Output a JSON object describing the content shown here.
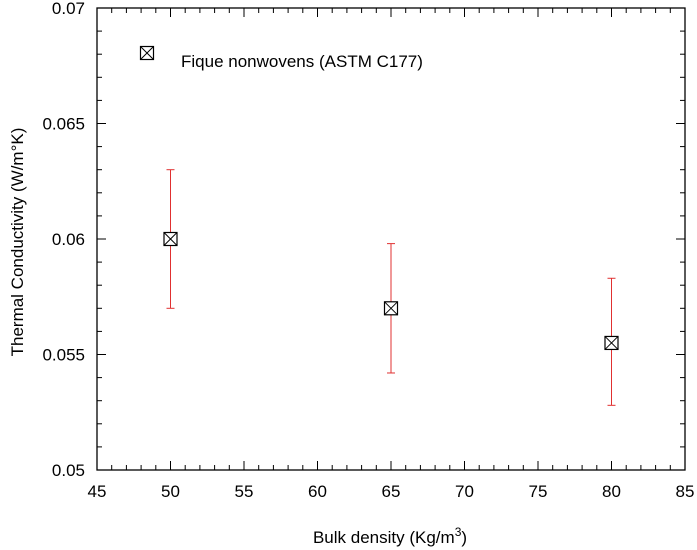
{
  "chart_data": {
    "type": "scatter",
    "title": "",
    "xlabel": "Bulk density (Kg/m",
    "xlabel_superscript": "3",
    "xlabel_suffix": ")",
    "ylabel": "Thermal Conductivity (W/m°K)",
    "xlim": [
      45,
      85
    ],
    "ylim": [
      0.05,
      0.07
    ],
    "x_ticks": [
      "45",
      "50",
      "55",
      "60",
      "65",
      "70",
      "75",
      "80",
      "85"
    ],
    "y_ticks": [
      "0.05",
      "0.055",
      "0.06",
      "0.065",
      "0.07"
    ],
    "grid": false,
    "legend_position": "top-left",
    "series": [
      {
        "name": "Fique nonwovens (ASTM C177)",
        "marker": "square-x",
        "marker_color": "#000000",
        "errorbar_color": "#e03030",
        "points": [
          {
            "x": 50,
            "y": 0.06,
            "y_low": 0.057,
            "y_high": 0.063
          },
          {
            "x": 65,
            "y": 0.057,
            "y_low": 0.0542,
            "y_high": 0.0598
          },
          {
            "x": 80,
            "y": 0.0555,
            "y_low": 0.0528,
            "y_high": 0.0583
          }
        ]
      }
    ]
  }
}
